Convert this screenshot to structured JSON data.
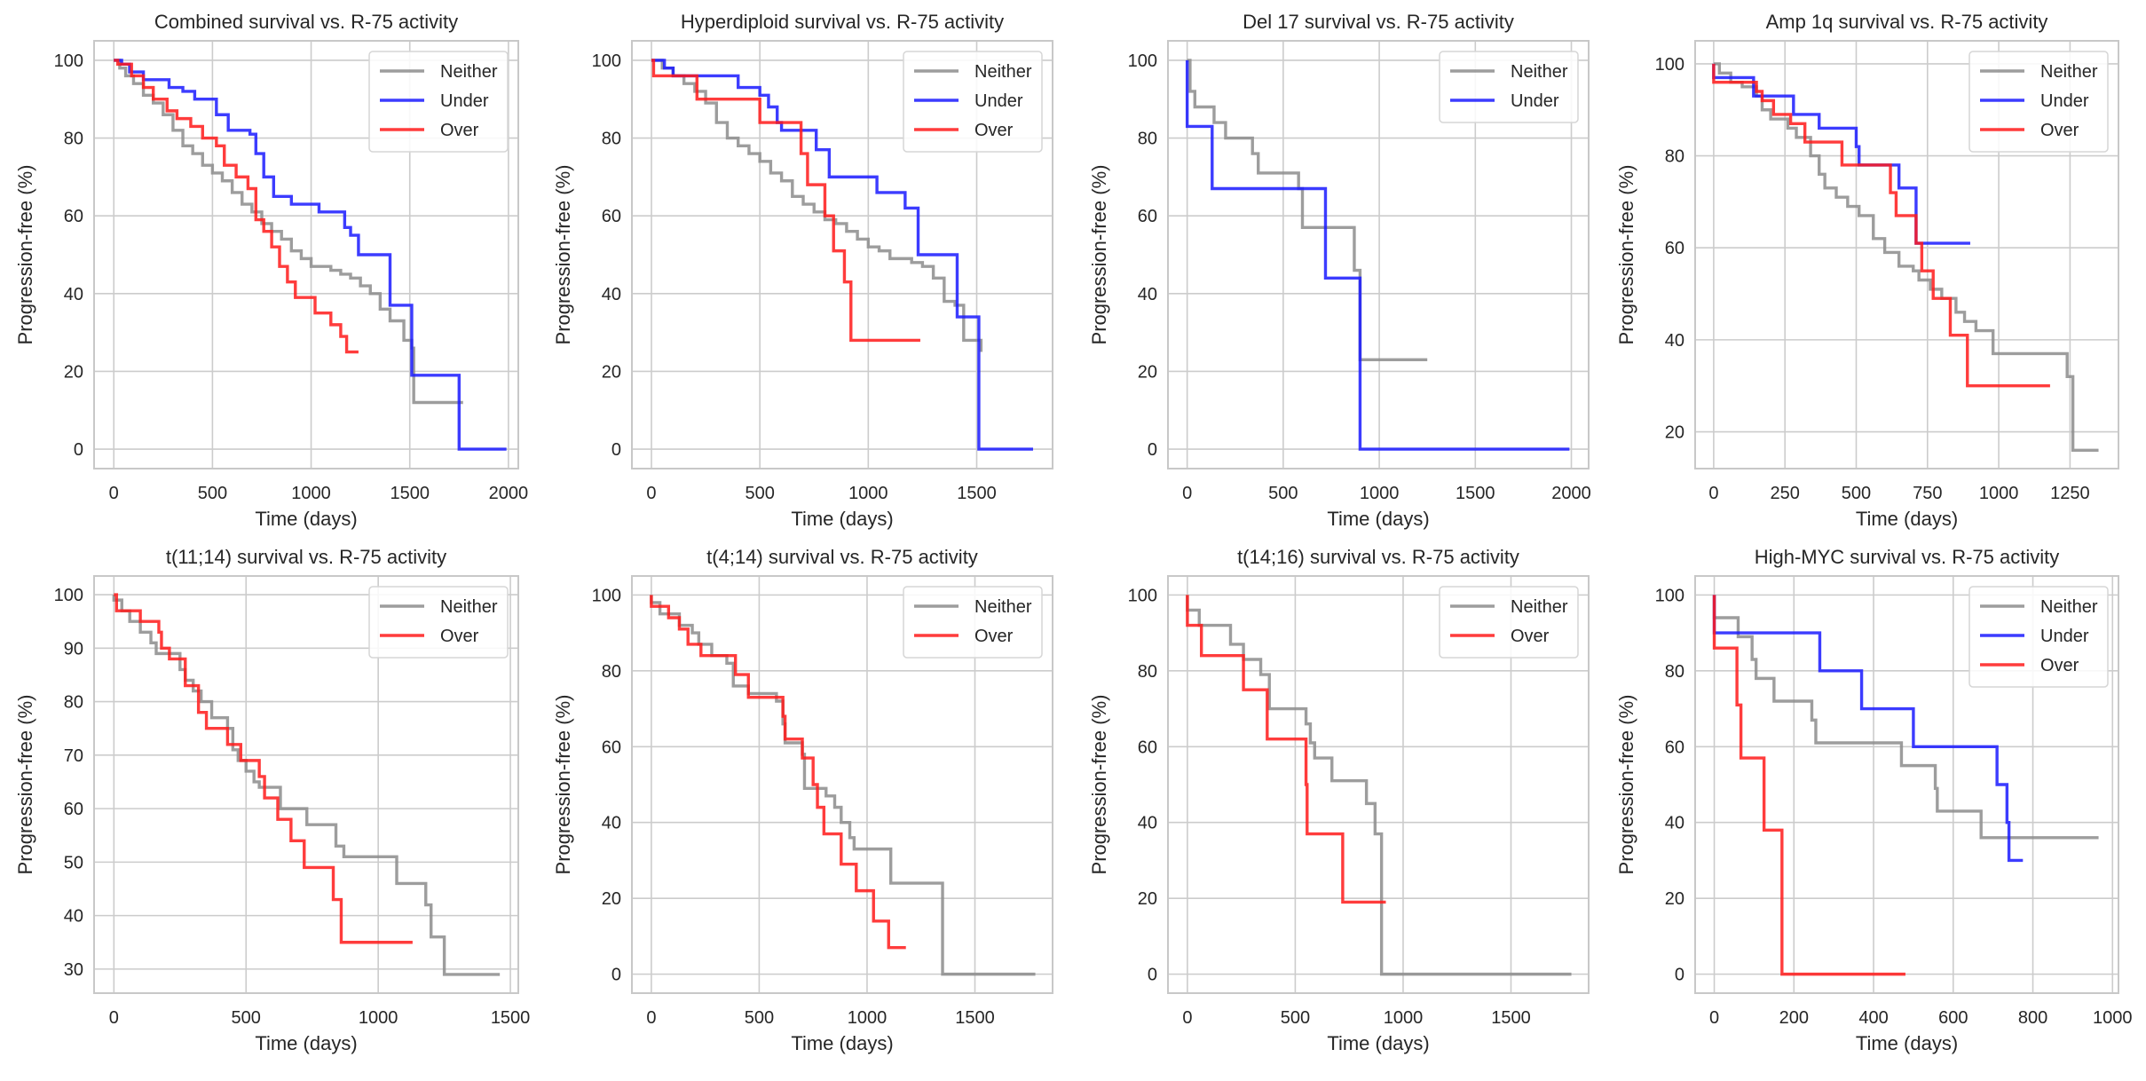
{
  "chart_data": [
    {
      "type": "line",
      "title": "Combined survival vs. R-75 activity",
      "xlabel": "Time (days)",
      "ylabel": "Progression-free (%)",
      "xlim": [
        -100,
        2050
      ],
      "ylim": [
        -5,
        105
      ],
      "xticks": [
        0,
        500,
        1000,
        1500,
        2000
      ],
      "yticks": [
        0,
        20,
        40,
        60,
        80,
        100
      ],
      "grid": true,
      "legend": "top-right",
      "series": [
        {
          "name": "Neither",
          "color": "#8c8c8c",
          "x": [
            0,
            30,
            60,
            100,
            150,
            200,
            250,
            300,
            350,
            400,
            450,
            500,
            550,
            600,
            650,
            700,
            750,
            800,
            850,
            900,
            950,
            1000,
            1050,
            1100,
            1150,
            1200,
            1250,
            1300,
            1350,
            1400,
            1430,
            1470,
            1510,
            1520,
            1770
          ],
          "y": [
            100,
            98,
            96,
            94,
            91,
            89,
            86,
            82,
            78,
            76,
            73,
            71,
            69,
            66,
            63,
            61,
            58,
            56,
            54,
            51,
            49,
            47,
            47,
            46,
            45,
            44,
            42,
            40,
            36,
            33,
            33,
            28,
            26,
            12,
            12
          ]
        },
        {
          "name": "Under",
          "color": "#1a1aff",
          "x": [
            0,
            40,
            80,
            150,
            280,
            350,
            410,
            500,
            520,
            580,
            690,
            720,
            760,
            810,
            900,
            1040,
            1170,
            1200,
            1240,
            1400,
            1510,
            1750,
            1990
          ],
          "y": [
            100,
            99,
            97,
            95,
            93,
            92,
            90,
            90,
            86,
            82,
            81,
            76,
            70,
            65,
            63,
            61,
            57,
            55,
            50,
            37,
            19,
            0,
            0
          ]
        },
        {
          "name": "Over",
          "color": "#ff1a1a",
          "x": [
            0,
            20,
            90,
            150,
            200,
            270,
            320,
            390,
            450,
            520,
            560,
            620,
            680,
            720,
            760,
            800,
            840,
            880,
            920,
            1020,
            1100,
            1150,
            1180,
            1240
          ],
          "y": [
            100,
            99,
            96,
            93,
            90,
            87,
            85,
            83,
            80,
            78,
            73,
            70,
            67,
            59,
            56,
            52,
            47,
            43,
            39,
            35,
            32,
            29,
            25,
            25
          ]
        }
      ]
    },
    {
      "type": "line",
      "title": "Hyperdiploid survival vs. R-75 activity",
      "xlabel": "Time (days)",
      "ylabel": "Progression-free (%)",
      "xlim": [
        -90,
        1850
      ],
      "ylim": [
        -5,
        105
      ],
      "xticks": [
        0,
        500,
        1000,
        1500
      ],
      "yticks": [
        0,
        20,
        40,
        60,
        80,
        100
      ],
      "grid": true,
      "legend": "top-right",
      "series": [
        {
          "name": "Neither",
          "color": "#8c8c8c",
          "x": [
            0,
            50,
            100,
            150,
            200,
            250,
            300,
            350,
            400,
            450,
            500,
            550,
            600,
            650,
            700,
            750,
            800,
            850,
            900,
            950,
            1000,
            1050,
            1100,
            1150,
            1200,
            1250,
            1300,
            1350,
            1400,
            1440,
            1520
          ],
          "y": [
            100,
            98,
            96,
            94,
            92,
            89,
            84,
            80,
            78,
            76,
            74,
            71,
            69,
            65,
            63,
            61,
            59,
            58,
            56,
            54,
            52,
            51,
            49,
            49,
            48,
            47,
            44,
            38,
            37,
            28,
            25
          ]
        },
        {
          "name": "Under",
          "color": "#1a1aff",
          "x": [
            0,
            60,
            100,
            350,
            400,
            500,
            540,
            580,
            600,
            700,
            760,
            820,
            1040,
            1170,
            1230,
            1410,
            1510,
            1760
          ],
          "y": [
            100,
            98,
            96,
            96,
            93,
            91,
            88,
            84,
            82,
            82,
            77,
            70,
            66,
            62,
            50,
            34,
            0,
            0
          ]
        },
        {
          "name": "Over",
          "color": "#ff1a1a",
          "x": [
            0,
            10,
            210,
            500,
            690,
            720,
            800,
            840,
            890,
            920,
            1240
          ],
          "y": [
            100,
            96,
            90,
            84,
            76,
            68,
            60,
            51,
            43,
            28,
            28
          ]
        }
      ]
    },
    {
      "type": "line",
      "title": "Del 17 survival vs. R-75 activity",
      "xlabel": "Time (days)",
      "ylabel": "Progression-free (%)",
      "xlim": [
        -100,
        2090
      ],
      "ylim": [
        -5,
        105
      ],
      "xticks": [
        0,
        500,
        1000,
        1500,
        2000
      ],
      "yticks": [
        0,
        20,
        40,
        60,
        80,
        100
      ],
      "grid": true,
      "legend": "top-right",
      "series": [
        {
          "name": "Neither",
          "color": "#8c8c8c",
          "x": [
            0,
            15,
            40,
            140,
            200,
            340,
            370,
            580,
            600,
            870,
            900,
            1250
          ],
          "y": [
            100,
            92,
            88,
            84,
            80,
            76,
            71,
            67,
            57,
            46,
            23,
            23
          ]
        },
        {
          "name": "Under",
          "color": "#1a1aff",
          "x": [
            0,
            130,
            720,
            900,
            1990
          ],
          "y": [
            83,
            67,
            44,
            0,
            0
          ]
        }
      ]
    },
    {
      "type": "line",
      "title": "Amp 1q survival vs. R-75 activity",
      "xlabel": "Time (days)",
      "ylabel": "Progression-free (%)",
      "xlim": [
        -65,
        1420
      ],
      "ylim": [
        12,
        105
      ],
      "xticks": [
        0,
        250,
        500,
        750,
        1000,
        1250
      ],
      "yticks": [
        20,
        40,
        60,
        80,
        100
      ],
      "grid": true,
      "legend": "top-right",
      "series": [
        {
          "name": "Neither",
          "color": "#8c8c8c",
          "x": [
            0,
            20,
            60,
            100,
            150,
            170,
            200,
            260,
            290,
            340,
            370,
            390,
            430,
            470,
            510,
            560,
            600,
            650,
            700,
            720,
            760,
            800,
            850,
            880,
            920,
            980,
            1240,
            1260,
            1350
          ],
          "y": [
            100,
            98,
            96,
            95,
            93,
            90,
            88,
            86,
            84,
            80,
            76,
            73,
            71,
            69,
            67,
            62,
            59,
            56,
            55,
            53,
            51,
            49,
            46,
            44,
            42,
            37,
            32,
            16,
            16
          ]
        },
        {
          "name": "Under",
          "color": "#1a1aff",
          "x": [
            0,
            140,
            280,
            370,
            500,
            510,
            650,
            710,
            900
          ],
          "y": [
            97,
            93,
            89,
            86,
            82,
            78,
            73,
            61,
            61
          ]
        },
        {
          "name": "Over",
          "color": "#ff1a1a",
          "x": [
            0,
            150,
            170,
            210,
            270,
            320,
            450,
            620,
            640,
            710,
            730,
            770,
            830,
            890,
            1180
          ],
          "y": [
            96,
            94,
            92,
            89,
            87,
            83,
            78,
            72,
            67,
            61,
            55,
            49,
            41,
            30,
            30
          ]
        }
      ]
    },
    {
      "type": "line",
      "title": "t(11;14) survival vs. R-75 activity",
      "xlabel": "Time (days)",
      "ylabel": "Progression-free (%)",
      "xlim": [
        -75,
        1530
      ],
      "ylim": [
        25.5,
        103.5
      ],
      "xticks": [
        0,
        500,
        1000,
        1500
      ],
      "yticks": [
        30,
        40,
        50,
        60,
        70,
        80,
        90,
        100
      ],
      "grid": true,
      "legend": "top-right",
      "series": [
        {
          "name": "Neither",
          "color": "#8c8c8c",
          "x": [
            0,
            30,
            60,
            100,
            140,
            160,
            250,
            270,
            300,
            330,
            370,
            430,
            450,
            470,
            500,
            530,
            550,
            630,
            730,
            840,
            870,
            1070,
            1180,
            1200,
            1250,
            1460
          ],
          "y": [
            99,
            97,
            95,
            93,
            91,
            89,
            86,
            84,
            82,
            80,
            77,
            75,
            71,
            69,
            67,
            65,
            64,
            60,
            57,
            53,
            51,
            46,
            42,
            36,
            29,
            29
          ]
        },
        {
          "name": "Over",
          "color": "#ff1a1a",
          "x": [
            0,
            10,
            100,
            170,
            180,
            210,
            270,
            320,
            350,
            430,
            480,
            550,
            570,
            620,
            670,
            720,
            830,
            860,
            1130
          ],
          "y": [
            100,
            97,
            95,
            93,
            90,
            88,
            83,
            78,
            75,
            72,
            69,
            66,
            62,
            58,
            54,
            49,
            43,
            35,
            35
          ]
        }
      ]
    },
    {
      "type": "line",
      "title": "t(4;14) survival vs. R-75 activity",
      "xlabel": "Time (days)",
      "ylabel": "Progression-free (%)",
      "xlim": [
        -90,
        1860
      ],
      "ylim": [
        -5,
        105
      ],
      "xticks": [
        0,
        500,
        1000,
        1500
      ],
      "yticks": [
        0,
        20,
        40,
        60,
        80,
        100
      ],
      "grid": true,
      "legend": "top-right",
      "series": [
        {
          "name": "Neither",
          "color": "#8c8c8c",
          "x": [
            0,
            40,
            130,
            190,
            220,
            280,
            350,
            380,
            450,
            580,
            610,
            620,
            700,
            710,
            810,
            850,
            880,
            920,
            940,
            1110,
            1350,
            1780
          ],
          "y": [
            98,
            95,
            92,
            90,
            87,
            84,
            82,
            76,
            74,
            72,
            66,
            61,
            58,
            49,
            47,
            44,
            40,
            36,
            33,
            24,
            0,
            0
          ]
        },
        {
          "name": "Over",
          "color": "#ff1a1a",
          "x": [
            0,
            80,
            130,
            170,
            230,
            390,
            450,
            610,
            620,
            700,
            750,
            770,
            800,
            880,
            950,
            1030,
            1100,
            1180
          ],
          "y": [
            97,
            94,
            91,
            87,
            84,
            79,
            73,
            68,
            62,
            57,
            50,
            44,
            37,
            29,
            22,
            14,
            7,
            7
          ]
        }
      ]
    },
    {
      "type": "line",
      "title": "t(14;16) survival vs. R-75 activity",
      "xlabel": "Time (days)",
      "ylabel": "Progression-free (%)",
      "xlim": [
        -90,
        1860
      ],
      "ylim": [
        -5,
        105
      ],
      "xticks": [
        0,
        500,
        1000,
        1500
      ],
      "yticks": [
        0,
        20,
        40,
        60,
        80,
        100
      ],
      "grid": true,
      "legend": "top-right",
      "series": [
        {
          "name": "Neither",
          "color": "#8c8c8c",
          "x": [
            0,
            55,
            200,
            260,
            340,
            380,
            550,
            570,
            590,
            670,
            830,
            870,
            900,
            1780
          ],
          "y": [
            96,
            92,
            87,
            83,
            79,
            70,
            66,
            61,
            57,
            51,
            45,
            37,
            0,
            0
          ]
        },
        {
          "name": "Over",
          "color": "#ff1a1a",
          "x": [
            0,
            65,
            260,
            370,
            550,
            555,
            720,
            920
          ],
          "y": [
            92,
            84,
            75,
            62,
            50,
            37,
            19,
            19
          ]
        }
      ]
    },
    {
      "type": "line",
      "title": "High-MYC survival vs. R-75 activity",
      "xlabel": "Time (days)",
      "ylabel": "Progression-free (%)",
      "xlim": [
        -48,
        1015
      ],
      "ylim": [
        -5,
        105
      ],
      "xticks": [
        0,
        200,
        400,
        600,
        800,
        1000
      ],
      "yticks": [
        0,
        20,
        40,
        60,
        80,
        100
      ],
      "grid": true,
      "legend": "top-right",
      "series": [
        {
          "name": "Neither",
          "color": "#8c8c8c",
          "x": [
            0,
            60,
            95,
            105,
            150,
            245,
            255,
            470,
            555,
            560,
            670,
            965
          ],
          "y": [
            94,
            89,
            83,
            78,
            72,
            67,
            61,
            55,
            49,
            43,
            36,
            36
          ]
        },
        {
          "name": "Under",
          "color": "#1a1aff",
          "x": [
            0,
            265,
            370,
            500,
            710,
            735,
            740,
            775
          ],
          "y": [
            90,
            80,
            70,
            60,
            50,
            40,
            30,
            30
          ]
        },
        {
          "name": "Over",
          "color": "#ff1a1a",
          "x": [
            0,
            57,
            67,
            125,
            170,
            480
          ],
          "y": [
            86,
            71,
            57,
            38,
            0,
            0
          ]
        }
      ]
    }
  ]
}
